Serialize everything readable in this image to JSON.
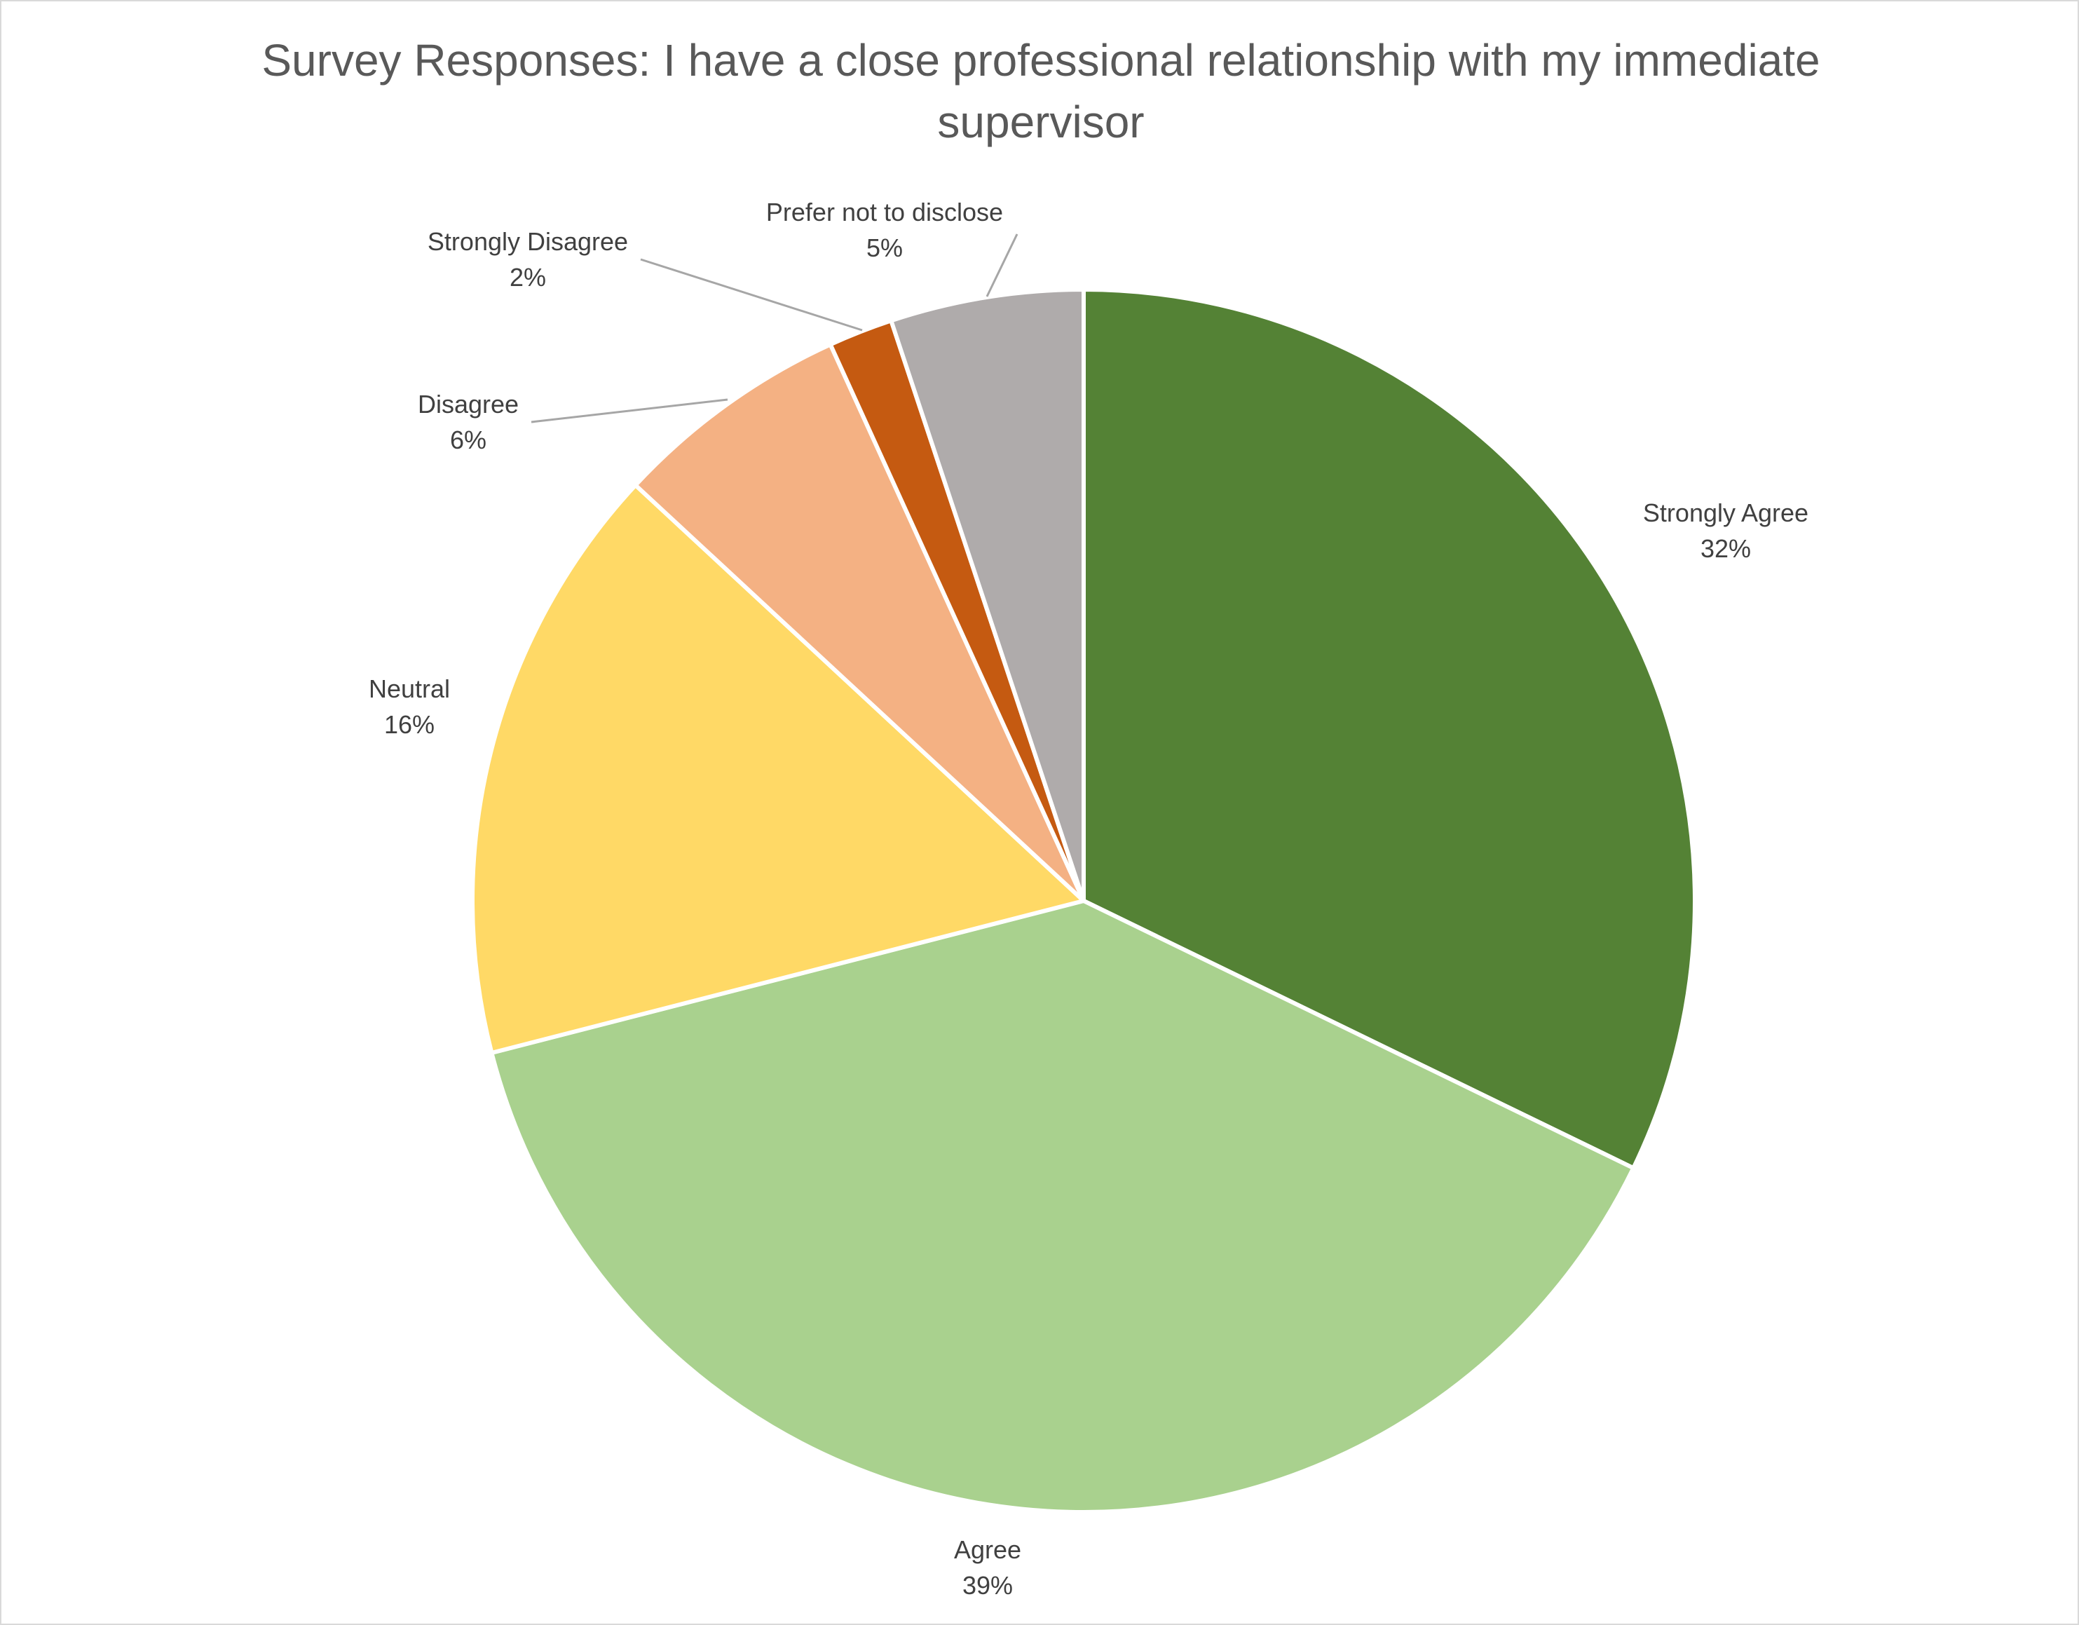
{
  "chart_data": {
    "type": "pie",
    "title": "Survey Responses: I have a close professional relationship with my immediate supervisor",
    "legend": "none",
    "slices": [
      {
        "name": "Strongly Agree",
        "label": "32%",
        "value": 32.2,
        "color": "#548235"
      },
      {
        "name": "Agree",
        "label": "39%",
        "value": 38.8,
        "color": "#a9d18e"
      },
      {
        "name": "Neutral",
        "label": "16%",
        "value": 15.9,
        "color": "#ffd966"
      },
      {
        "name": "Disagree",
        "label": "6%",
        "value": 6.3,
        "color": "#f4b183"
      },
      {
        "name": "Strongly Disagree",
        "label": "2%",
        "value": 1.7,
        "color": "#c55a11"
      },
      {
        "name": "Prefer not to disclose",
        "label": "5%",
        "value": 5.1,
        "color": "#afabab"
      }
    ]
  }
}
